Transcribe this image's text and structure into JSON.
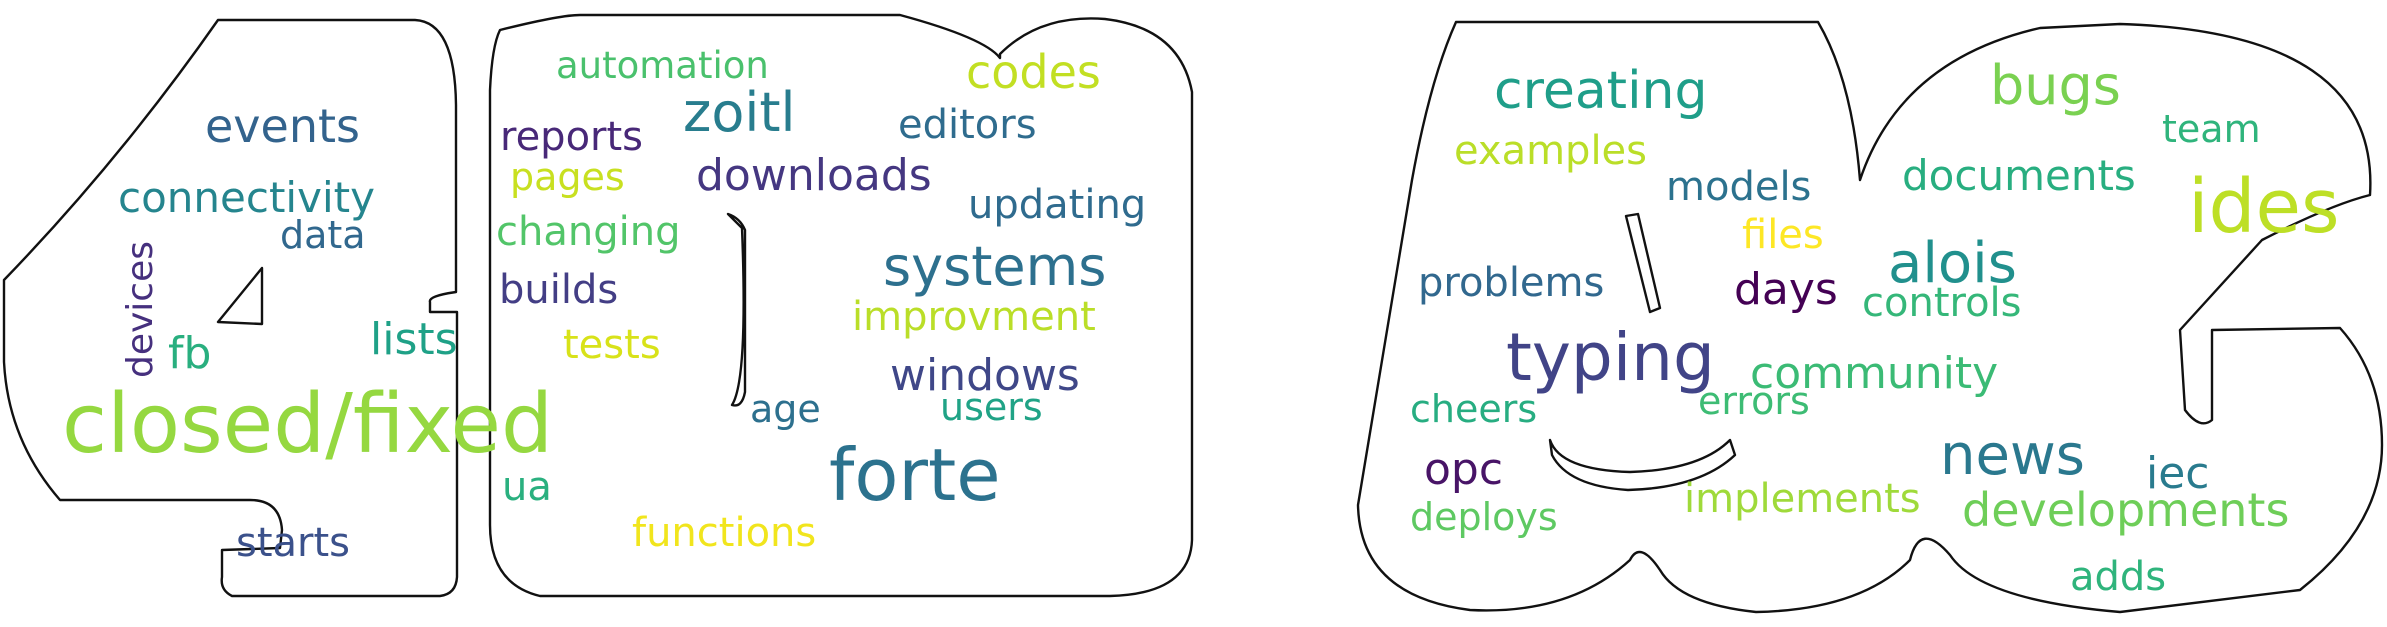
{
  "clouds": [
    {
      "name": "cloud-4d",
      "words": [
        {
          "text": "closed/fixed",
          "color": "#95d840"
        },
        {
          "text": "forte",
          "color": "#2c728e"
        },
        {
          "text": "zoitl",
          "color": "#287d8e"
        },
        {
          "text": "systems",
          "color": "#2d708e"
        },
        {
          "text": "events",
          "color": "#33638d"
        },
        {
          "text": "codes",
          "color": "#c2df23"
        },
        {
          "text": "windows",
          "color": "#3f4788"
        },
        {
          "text": "downloads",
          "color": "#453781"
        },
        {
          "text": "connectivity",
          "color": "#25858e"
        },
        {
          "text": "editors",
          "color": "#2f6c8e"
        },
        {
          "text": "updating",
          "color": "#2f6b8e"
        },
        {
          "text": "reports",
          "color": "#482878"
        },
        {
          "text": "improvment",
          "color": "#bade28"
        },
        {
          "text": "automation",
          "color": "#4ac16d"
        },
        {
          "text": "changing",
          "color": "#52c569"
        },
        {
          "text": "builds",
          "color": "#433e85"
        },
        {
          "text": "lists",
          "color": "#1fa187"
        },
        {
          "text": "tests",
          "color": "#d8e219"
        },
        {
          "text": "pages",
          "color": "#c8e020"
        },
        {
          "text": "data",
          "color": "#31688e"
        },
        {
          "text": "fb",
          "color": "#29af7f"
        },
        {
          "text": "age",
          "color": "#2d708e"
        },
        {
          "text": "users",
          "color": "#20a386"
        },
        {
          "text": "functions",
          "color": "#f1e51d"
        },
        {
          "text": "ua",
          "color": "#2ab07f"
        },
        {
          "text": "starts",
          "color": "#3b518b"
        },
        {
          "text": "devices",
          "color": "#46307e"
        }
      ]
    },
    {
      "name": "cloud-ide",
      "words": [
        {
          "text": "typing",
          "color": "#414487"
        },
        {
          "text": "ides",
          "color": "#bddf26"
        },
        {
          "text": "creating",
          "color": "#1f9e89"
        },
        {
          "text": "bugs",
          "color": "#7ad151"
        },
        {
          "text": "alois",
          "color": "#21908d"
        },
        {
          "text": "news",
          "color": "#2a788e"
        },
        {
          "text": "developments",
          "color": "#6ece58"
        },
        {
          "text": "documents",
          "color": "#28ae80"
        },
        {
          "text": "community",
          "color": "#3bbb75"
        },
        {
          "text": "examples",
          "color": "#bade28"
        },
        {
          "text": "models",
          "color": "#2c728e"
        },
        {
          "text": "implements",
          "color": "#9fda3a"
        },
        {
          "text": "controls",
          "color": "#35b779"
        },
        {
          "text": "problems",
          "color": "#31688e"
        },
        {
          "text": "files",
          "color": "#fde725"
        },
        {
          "text": "days",
          "color": "#440154"
        },
        {
          "text": "errors",
          "color": "#3dbc74"
        },
        {
          "text": "cheers",
          "color": "#27ad81"
        },
        {
          "text": "opc",
          "color": "#481467"
        },
        {
          "text": "deploys",
          "color": "#5ec962"
        },
        {
          "text": "iec",
          "color": "#297b8e"
        },
        {
          "text": "team",
          "color": "#2fb47c"
        },
        {
          "text": "adds",
          "color": "#2fb47c"
        }
      ]
    }
  ]
}
